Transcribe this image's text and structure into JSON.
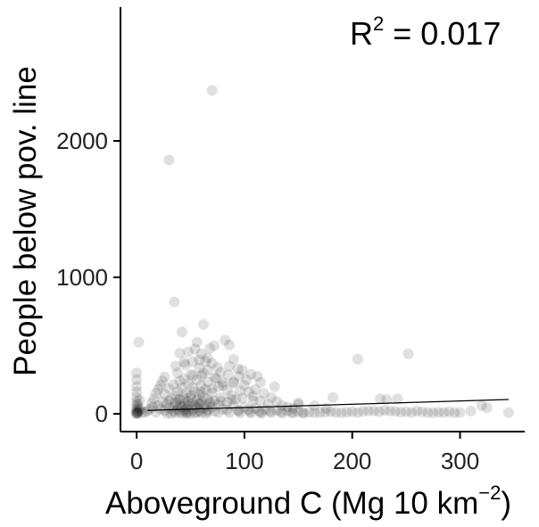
{
  "chart_data": {
    "type": "scatter",
    "title": "",
    "xlabel": "Aboveground C (Mg 10 km",
    "xlabel_exponent": "−2",
    "xlabel_suffix": ")",
    "ylabel": "People below pov. line",
    "xlim": [
      -15,
      360
    ],
    "ylim": [
      -130,
      2980
    ],
    "x_ticks": [
      0,
      100,
      200,
      300
    ],
    "x_tick_labels": [
      "0",
      "100",
      "200",
      "300"
    ],
    "y_ticks": [
      0,
      1000,
      2000
    ],
    "y_tick_labels": [
      "0",
      "1000",
      "2000"
    ],
    "grid": false,
    "annotation": {
      "base": "R",
      "exponent": "2",
      "rest": " = 0.017"
    },
    "point_color": "#000000",
    "point_opacity": 0.12,
    "fit_line": {
      "x": [
        10,
        345
      ],
      "y": [
        25,
        105
      ]
    },
    "series": [
      {
        "points": [
          [
            70,
            2370
          ],
          [
            30,
            1860
          ],
          [
            35,
            820
          ],
          [
            62,
            655
          ],
          [
            42,
            600
          ],
          [
            2,
            525
          ],
          [
            72,
            500
          ],
          [
            56,
            525
          ],
          [
            68,
            480
          ],
          [
            82,
            540
          ],
          [
            86,
            505
          ],
          [
            54,
            475
          ],
          [
            48,
            455
          ],
          [
            40,
            445
          ],
          [
            60,
            440
          ],
          [
            90,
            400
          ],
          [
            64,
            385
          ],
          [
            52,
            380
          ],
          [
            70,
            370
          ],
          [
            45,
            360
          ],
          [
            75,
            340
          ],
          [
            58,
            335
          ],
          [
            66,
            320
          ],
          [
            78,
            305
          ],
          [
            38,
            300
          ],
          [
            50,
            290
          ],
          [
            60,
            280
          ],
          [
            85,
            285
          ],
          [
            95,
            275
          ],
          [
            106,
            290
          ],
          [
            112,
            275
          ],
          [
            72,
            265
          ],
          [
            44,
            255
          ],
          [
            56,
            250
          ],
          [
            40,
            240
          ],
          [
            66,
            235
          ],
          [
            80,
            230
          ],
          [
            90,
            225
          ],
          [
            48,
            220
          ],
          [
            34,
            215
          ],
          [
            100,
            210
          ],
          [
            60,
            205
          ],
          [
            76,
            200
          ],
          [
            52,
            195
          ],
          [
            42,
            190
          ],
          [
            30,
            185
          ],
          [
            64,
            180
          ],
          [
            84,
            175
          ],
          [
            96,
            170
          ],
          [
            38,
            165
          ],
          [
            54,
            160
          ],
          [
            70,
            155
          ],
          [
            46,
            150
          ],
          [
            26,
            145
          ],
          [
            58,
            140
          ],
          [
            88,
            135
          ],
          [
            36,
            130
          ],
          [
            62,
            125
          ],
          [
            50,
            120
          ],
          [
            78,
            118
          ],
          [
            44,
            115
          ],
          [
            32,
            112
          ],
          [
            66,
            108
          ],
          [
            92,
            105
          ],
          [
            40,
            102
          ],
          [
            56,
            98
          ],
          [
            72,
            95
          ],
          [
            48,
            92
          ],
          [
            24,
            90
          ],
          [
            60,
            88
          ],
          [
            84,
            85
          ],
          [
            36,
            82
          ],
          [
            52,
            80
          ],
          [
            68,
            78
          ],
          [
            44,
            75
          ],
          [
            28,
            72
          ],
          [
            58,
            70
          ],
          [
            76,
            68
          ],
          [
            40,
            65
          ],
          [
            54,
            62
          ],
          [
            20,
            60
          ],
          [
            64,
            58
          ],
          [
            48,
            55
          ],
          [
            34,
            52
          ],
          [
            70,
            50
          ],
          [
            42,
            48
          ],
          [
            56,
            45
          ],
          [
            30,
            42
          ],
          [
            62,
            40
          ],
          [
            46,
            38
          ],
          [
            22,
            36
          ],
          [
            80,
            35
          ],
          [
            38,
            32
          ],
          [
            52,
            30
          ],
          [
            66,
            28
          ],
          [
            44,
            26
          ],
          [
            26,
            24
          ],
          [
            58,
            22
          ],
          [
            34,
            20
          ],
          [
            72,
            18
          ],
          [
            48,
            16
          ],
          [
            40,
            14
          ],
          [
            18,
            12
          ],
          [
            60,
            10
          ],
          [
            36,
            8
          ],
          [
            54,
            6
          ],
          [
            28,
            4
          ],
          [
            46,
            3
          ],
          [
            64,
            2
          ],
          [
            32,
            1
          ],
          [
            50,
            2
          ],
          [
            42,
            4
          ],
          [
            0,
            300
          ],
          [
            0,
            250
          ],
          [
            0,
            200
          ],
          [
            0,
            160
          ],
          [
            0,
            120
          ],
          [
            0,
            90
          ],
          [
            0,
            60
          ],
          [
            0,
            40
          ],
          [
            0,
            25
          ],
          [
            0,
            15
          ],
          [
            0,
            8
          ],
          [
            0,
            3
          ],
          [
            0,
            0
          ],
          [
            1,
            10
          ],
          [
            2,
            20
          ],
          [
            1,
            5
          ],
          [
            3,
            30
          ],
          [
            2,
            45
          ],
          [
            1,
            70
          ],
          [
            3,
            100
          ],
          [
            5,
            8
          ],
          [
            8,
            12
          ],
          [
            10,
            20
          ],
          [
            12,
            35
          ],
          [
            15,
            50
          ],
          [
            14,
            80
          ],
          [
            16,
            110
          ],
          [
            18,
            150
          ],
          [
            20,
            180
          ],
          [
            22,
            210
          ],
          [
            24,
            240
          ],
          [
            26,
            270
          ],
          [
            110,
            180
          ],
          [
            118,
            150
          ],
          [
            125,
            120
          ],
          [
            130,
            90
          ],
          [
            108,
            130
          ],
          [
            115,
            95
          ],
          [
            122,
            70
          ],
          [
            135,
            60
          ],
          [
            102,
            250
          ],
          [
            98,
            320
          ],
          [
            115,
            230
          ],
          [
            128,
            200
          ],
          [
            104,
            160
          ],
          [
            140,
            50
          ],
          [
            145,
            40
          ],
          [
            150,
            70
          ],
          [
            90,
            60
          ],
          [
            100,
            50
          ],
          [
            110,
            40
          ],
          [
            120,
            30
          ],
          [
            130,
            25
          ],
          [
            140,
            20
          ],
          [
            150,
            15
          ],
          [
            160,
            12
          ],
          [
            95,
            20
          ],
          [
            105,
            15
          ],
          [
            115,
            10
          ],
          [
            125,
            8
          ],
          [
            135,
            6
          ],
          [
            145,
            5
          ],
          [
            155,
            4
          ],
          [
            165,
            8
          ],
          [
            170,
            10
          ],
          [
            175,
            12
          ],
          [
            180,
            15
          ],
          [
            185,
            10
          ],
          [
            190,
            8
          ],
          [
            195,
            12
          ],
          [
            200,
            15
          ],
          [
            205,
            10
          ],
          [
            210,
            18
          ],
          [
            215,
            20
          ],
          [
            220,
            22
          ],
          [
            225,
            15
          ],
          [
            230,
            25
          ],
          [
            235,
            20
          ],
          [
            240,
            18
          ],
          [
            245,
            12
          ],
          [
            250,
            15
          ],
          [
            255,
            10
          ],
          [
            260,
            20
          ],
          [
            265,
            15
          ],
          [
            270,
            10
          ],
          [
            275,
            8
          ],
          [
            280,
            12
          ],
          [
            285,
            10
          ],
          [
            290,
            15
          ],
          [
            295,
            8
          ],
          [
            300,
            10
          ],
          [
            310,
            20
          ],
          [
            320,
            60
          ],
          [
            325,
            45
          ],
          [
            345,
            10
          ],
          [
            205,
            400
          ],
          [
            252,
            440
          ],
          [
            182,
            120
          ],
          [
            226,
            110
          ],
          [
            232,
            105
          ],
          [
            242,
            110
          ],
          [
            150,
            80
          ],
          [
            165,
            60
          ],
          [
            176,
            40
          ],
          [
            84,
            30
          ],
          [
            94,
            25
          ],
          [
            104,
            30
          ],
          [
            114,
            20
          ],
          [
            124,
            18
          ],
          [
            134,
            15
          ],
          [
            144,
            12
          ],
          [
            154,
            10
          ],
          [
            46,
            10
          ],
          [
            56,
            12
          ],
          [
            66,
            15
          ],
          [
            76,
            10
          ],
          [
            86,
            8
          ],
          [
            96,
            6
          ],
          [
            106,
            5
          ],
          [
            116,
            4
          ],
          [
            38,
            55
          ],
          [
            48,
            65
          ],
          [
            58,
            75
          ],
          [
            68,
            85
          ],
          [
            78,
            95
          ],
          [
            88,
            105
          ],
          [
            98,
            115
          ],
          [
            108,
            95
          ],
          [
            30,
            95
          ],
          [
            40,
            110
          ],
          [
            50,
            135
          ],
          [
            60,
            160
          ],
          [
            70,
            185
          ],
          [
            80,
            210
          ],
          [
            90,
            235
          ],
          [
            74,
            260
          ],
          [
            52,
            280
          ],
          [
            62,
            300
          ],
          [
            66,
            410
          ],
          [
            58,
            395
          ],
          [
            44,
            380
          ],
          [
            36,
            350
          ],
          [
            86,
            350
          ],
          [
            94,
            330
          ]
        ]
      }
    ]
  }
}
